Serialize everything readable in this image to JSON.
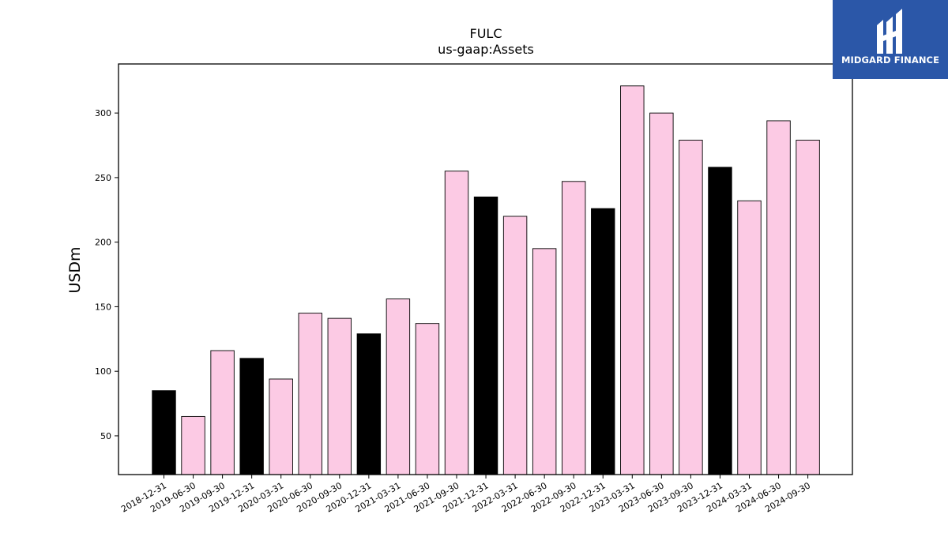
{
  "chart_data": {
    "type": "bar",
    "title": "FULC",
    "subtitle": "us-gaap:Assets",
    "xlabel": "",
    "ylabel": "USDm",
    "ylim": [
      20,
      338
    ],
    "yticks": [
      50,
      100,
      150,
      200,
      250,
      300
    ],
    "grid": false,
    "categories": [
      "2018-12-31",
      "2019-06-30",
      "2019-09-30",
      "2019-12-31",
      "2020-03-31",
      "2020-06-30",
      "2020-09-30",
      "2020-12-31",
      "2021-03-31",
      "2021-06-30",
      "2021-09-30",
      "2021-12-31",
      "2022-03-31",
      "2022-06-30",
      "2022-09-30",
      "2022-12-31",
      "2023-03-31",
      "2023-06-30",
      "2023-09-30",
      "2023-12-31",
      "2024-03-31",
      "2024-06-30",
      "2024-09-30"
    ],
    "values": [
      85,
      65,
      116,
      110,
      94,
      145,
      141,
      129,
      156,
      137,
      255,
      235,
      220,
      195,
      247,
      226,
      321,
      300,
      279,
      258,
      232,
      294,
      279
    ],
    "bar_kind": [
      "annual",
      "quarterly",
      "quarterly",
      "annual",
      "quarterly",
      "quarterly",
      "quarterly",
      "annual",
      "quarterly",
      "quarterly",
      "quarterly",
      "annual",
      "quarterly",
      "quarterly",
      "quarterly",
      "annual",
      "quarterly",
      "quarterly",
      "quarterly",
      "annual",
      "quarterly",
      "quarterly",
      "quarterly"
    ],
    "colors": {
      "annual": "#000000",
      "quarterly": "#fccae4",
      "edge": "#000000"
    }
  },
  "logo": {
    "text": "MIDGARD FINANCE",
    "background": "#2b57a8",
    "icon": "midgard-logo-icon"
  }
}
